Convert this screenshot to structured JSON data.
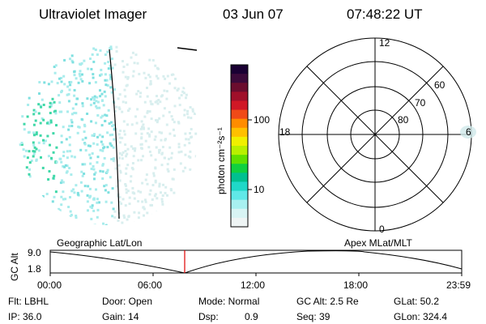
{
  "header": {
    "instrument": "Ultraviolet Imager",
    "date": "03 Jun 07",
    "time": "07:48:22 UT"
  },
  "colorbar": {
    "unit_label": "photon cm⁻²s⁻¹",
    "ticks": [
      {
        "label": "100",
        "value": 100
      },
      {
        "label": "10",
        "value": 10
      }
    ],
    "colors": [
      "#1a0033",
      "#3b0a3a",
      "#6b0d2e",
      "#a0102a",
      "#d01826",
      "#f04a18",
      "#ff8c00",
      "#ffc000",
      "#f0f000",
      "#b8f000",
      "#60e000",
      "#10d040",
      "#00c090",
      "#20d8c8",
      "#60e8e8",
      "#a8f0f0",
      "#d8f4f4",
      "#eef4f4"
    ]
  },
  "polar_plot": {
    "labels": {
      "top": "12",
      "bottom": "0",
      "left": "18",
      "right": "6"
    },
    "rings": [
      "60",
      "70",
      "80"
    ]
  },
  "timeline": {
    "left_title": "Geographic Lat/Lon",
    "right_title": "Apex  MLat/MLT",
    "axis_label": "GC Alt",
    "y_max": "9.0",
    "y_min": "1.8",
    "x_ticks": [
      "00:00",
      "06:00",
      "12:00",
      "18:00",
      "23:59"
    ]
  },
  "info": {
    "flt": "Flt: LBHL",
    "ip": "IP: 36.0",
    "door": "Door: Open",
    "gain": "Gain: 14",
    "mode": "Mode: Normal",
    "dsp_label": "Dsp:",
    "dsp_value": "0.9",
    "gcalt": "GC Alt: 2.5 Re",
    "seq": "Seq: 39",
    "glat": "GLat:  50.2",
    "glon": "GLon: 324.4"
  }
}
